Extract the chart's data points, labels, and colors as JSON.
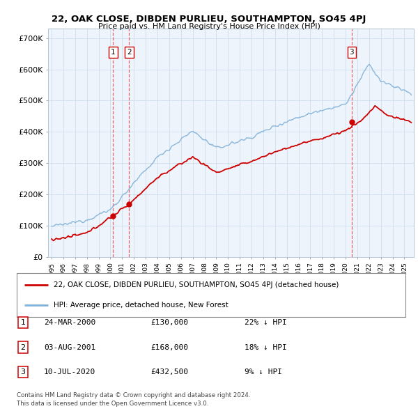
{
  "title": "22, OAK CLOSE, DIBDEN PURLIEU, SOUTHAMPTON, SO45 4PJ",
  "subtitle": "Price paid vs. HM Land Registry's House Price Index (HPI)",
  "background_color": "#ffffff",
  "plot_bg_color": "#eef4fb",
  "grid_color": "#c8d8e8",
  "sale_color": "#cc0000",
  "hpi_color": "#7fb0d8",
  "legend_sale_label": "22, OAK CLOSE, DIBDEN PURLIEU, SOUTHAMPTON, SO45 4PJ (detached house)",
  "legend_hpi_label": "HPI: Average price, detached house, New Forest",
  "table_rows": [
    {
      "num": "1",
      "date": "24-MAR-2000",
      "price": "£130,000",
      "hpi": "22% ↓ HPI"
    },
    {
      "num": "2",
      "date": "03-AUG-2001",
      "price": "£168,000",
      "hpi": "18% ↓ HPI"
    },
    {
      "num": "3",
      "date": "10-JUL-2020",
      "price": "£432,500",
      "hpi": "9% ↓ HPI"
    }
  ],
  "footnote1": "Contains HM Land Registry data © Crown copyright and database right 2024.",
  "footnote2": "This data is licensed under the Open Government Licence v3.0.",
  "ylim": [
    0,
    730000
  ],
  "yticks": [
    0,
    100000,
    200000,
    300000,
    400000,
    500000,
    600000,
    700000
  ],
  "ytick_labels": [
    "£0",
    "£100K",
    "£200K",
    "£300K",
    "£400K",
    "£500K",
    "£600K",
    "£700K"
  ],
  "xlim_start": 1994.7,
  "xlim_end": 2025.8,
  "sale1_x": 2000.23,
  "sale2_x": 2001.59,
  "sale3_x": 2020.52,
  "sale1_y": 130000,
  "sale2_y": 168000,
  "sale3_y": 432500
}
